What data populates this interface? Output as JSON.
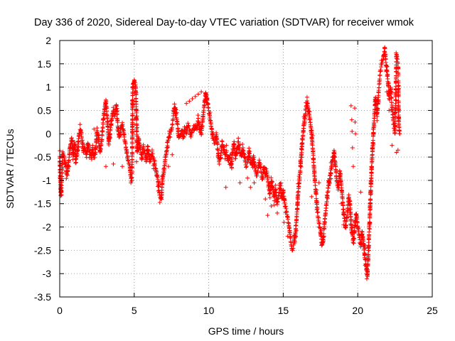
{
  "chart_data": {
    "type": "scatter",
    "title": "Day 336 of 2020, Sidereal Day-to-day VTEC variation (SDTVAR) for receiver wmok",
    "xlabel": "GPS time / hours",
    "ylabel": "SDTVAR / TECUs",
    "xlim": [
      0,
      25
    ],
    "ylim": [
      -3.5,
      2
    ],
    "xticks": [
      0,
      5,
      10,
      15,
      20,
      25
    ],
    "yticks": [
      -3.5,
      -3,
      -2.5,
      -2,
      -1.5,
      -1,
      -0.5,
      0,
      0.5,
      1,
      1.5,
      2
    ],
    "xtick_labels": [
      "0",
      "5",
      "10",
      "15",
      "20",
      "25"
    ],
    "ytick_labels": [
      "-3.5",
      "-3",
      "-2.5",
      "-2",
      "-1.5",
      "-1",
      "-0.5",
      "0",
      "0.5",
      "1",
      "1.5",
      "2"
    ],
    "grid": true,
    "marker": "plus",
    "color": "#ff0000",
    "series": [
      {
        "name": "SDTVAR",
        "trace": [
          [
            0.0,
            -0.5
          ],
          [
            0.05,
            -1.1
          ],
          [
            0.1,
            -1.3
          ],
          [
            0.15,
            -0.9
          ],
          [
            0.2,
            -0.4
          ],
          [
            0.3,
            -0.5
          ],
          [
            0.4,
            -0.7
          ],
          [
            0.5,
            -0.9
          ],
          [
            0.6,
            -0.6
          ],
          [
            0.7,
            -0.3
          ],
          [
            0.8,
            -0.1
          ],
          [
            0.9,
            -0.5
          ],
          [
            1.0,
            -0.2
          ],
          [
            1.1,
            -0.6
          ],
          [
            1.2,
            -0.3
          ],
          [
            1.3,
            -0.0
          ],
          [
            1.4,
            0.1
          ],
          [
            1.5,
            -0.1
          ],
          [
            1.6,
            -0.4
          ],
          [
            1.7,
            -0.3
          ],
          [
            1.8,
            -0.5
          ],
          [
            1.9,
            -0.2
          ],
          [
            2.0,
            -0.4
          ],
          [
            2.1,
            -0.5
          ],
          [
            2.2,
            -0.3
          ],
          [
            2.3,
            -0.5
          ],
          [
            2.4,
            -0.4
          ],
          [
            2.5,
            0.05
          ],
          [
            2.6,
            -0.1
          ],
          [
            2.7,
            -0.4
          ],
          [
            2.8,
            -0.2
          ],
          [
            2.9,
            0.2
          ],
          [
            3.0,
            0.5
          ],
          [
            3.1,
            0.7
          ],
          [
            3.2,
            0.3
          ],
          [
            3.3,
            -0.2
          ],
          [
            3.4,
            0.1
          ],
          [
            3.5,
            0.3
          ],
          [
            3.6,
            0.5
          ],
          [
            3.7,
            0.4
          ],
          [
            3.8,
            0.6
          ],
          [
            3.9,
            0.2
          ],
          [
            4.0,
            -0.1
          ],
          [
            4.1,
            0.1
          ],
          [
            4.2,
            0.2
          ],
          [
            4.3,
            0.0
          ],
          [
            4.4,
            -0.2
          ],
          [
            4.5,
            -0.4
          ],
          [
            4.6,
            -0.6
          ],
          [
            4.7,
            -0.7
          ],
          [
            4.75,
            -0.9
          ],
          [
            4.8,
            -1.0
          ],
          [
            4.85,
            -0.8
          ],
          [
            4.9,
            1.0
          ],
          [
            4.95,
            1.08
          ],
          [
            5.0,
            1.15
          ],
          [
            5.1,
            1.0
          ],
          [
            5.2,
            -0.4
          ],
          [
            5.3,
            -0.1
          ],
          [
            5.4,
            -0.3
          ],
          [
            5.5,
            -0.5
          ],
          [
            5.6,
            -0.3
          ],
          [
            5.7,
            -0.4
          ],
          [
            5.8,
            -0.6
          ],
          [
            5.9,
            -0.3
          ],
          [
            6.0,
            -0.5
          ],
          [
            6.1,
            -0.6
          ],
          [
            6.2,
            -0.4
          ],
          [
            6.6,
            -1.0
          ],
          [
            6.7,
            -1.3
          ],
          [
            6.8,
            -1.4
          ],
          [
            6.9,
            -1.0
          ],
          [
            7.0,
            -0.8
          ],
          [
            7.1,
            -0.5
          ],
          [
            7.2,
            -0.3
          ],
          [
            7.3,
            -0.1
          ],
          [
            7.4,
            0.0
          ],
          [
            7.5,
            0.1
          ],
          [
            7.6,
            0.3
          ],
          [
            7.7,
            0.6
          ],
          [
            7.8,
            0.4
          ],
          [
            7.9,
            0.2
          ],
          [
            8.0,
            -0.1
          ],
          [
            8.1,
            0.0
          ],
          [
            8.2,
            0.1
          ],
          [
            8.3,
            -0.1
          ],
          [
            8.4,
            0.1
          ],
          [
            8.5,
            0.0
          ],
          [
            8.6,
            0.2
          ],
          [
            8.7,
            0.1
          ],
          [
            8.8,
            -0.05
          ],
          [
            8.9,
            0.1
          ],
          [
            9.0,
            0.05
          ],
          [
            9.1,
            0.2
          ],
          [
            9.2,
            0.1
          ],
          [
            9.3,
            0.3
          ],
          [
            9.4,
            0.1
          ],
          [
            9.5,
            0.0
          ],
          [
            9.6,
            0.3
          ],
          [
            9.7,
            0.6
          ],
          [
            9.8,
            0.9
          ],
          [
            9.9,
            0.7
          ],
          [
            10.0,
            0.5
          ],
          [
            10.1,
            0.3
          ],
          [
            10.2,
            0.1
          ],
          [
            10.3,
            -0.1
          ],
          [
            10.4,
            -0.2
          ],
          [
            10.5,
            0.0
          ],
          [
            10.6,
            -0.3
          ],
          [
            10.7,
            -0.6
          ],
          [
            10.8,
            -0.5
          ],
          [
            10.9,
            -0.2
          ],
          [
            11.0,
            -0.3
          ],
          [
            11.1,
            -0.5
          ],
          [
            11.2,
            -0.4
          ],
          [
            11.3,
            -0.6
          ],
          [
            11.4,
            -0.5
          ],
          [
            11.5,
            -0.7
          ],
          [
            11.6,
            -0.4
          ],
          [
            11.7,
            -0.2
          ],
          [
            11.8,
            -0.5
          ],
          [
            11.9,
            -0.3
          ],
          [
            12.0,
            -0.2
          ],
          [
            12.1,
            -0.4
          ],
          [
            12.2,
            -0.5
          ],
          [
            12.3,
            -0.3
          ],
          [
            12.4,
            -0.5
          ],
          [
            12.5,
            -0.7
          ],
          [
            12.6,
            -0.6
          ],
          [
            12.7,
            -0.4
          ],
          [
            12.8,
            -0.6
          ],
          [
            12.9,
            -0.7
          ],
          [
            13.0,
            -0.5
          ],
          [
            13.1,
            -0.7
          ],
          [
            13.2,
            -0.9
          ],
          [
            13.3,
            -0.8
          ],
          [
            13.4,
            -0.6
          ],
          [
            13.5,
            -0.8
          ],
          [
            13.6,
            -1.0
          ],
          [
            13.7,
            -0.7
          ],
          [
            13.8,
            -0.9
          ],
          [
            13.9,
            -0.8
          ],
          [
            14.0,
            -1.1
          ],
          [
            14.1,
            -1.3
          ],
          [
            14.2,
            -1.0
          ],
          [
            14.3,
            -1.2
          ],
          [
            14.4,
            -1.4
          ],
          [
            14.5,
            -1.2
          ],
          [
            14.6,
            -1.5
          ],
          [
            14.7,
            -1.3
          ],
          [
            14.8,
            -1.1
          ],
          [
            14.9,
            -1.4
          ],
          [
            15.0,
            -1.2
          ],
          [
            15.1,
            -1.5
          ],
          [
            15.2,
            -1.6
          ],
          [
            15.3,
            -1.8
          ],
          [
            15.4,
            -2.0
          ],
          [
            15.5,
            -2.3
          ],
          [
            15.6,
            -2.5
          ],
          [
            15.7,
            -2.4
          ],
          [
            15.8,
            -2.2
          ],
          [
            15.9,
            -1.8
          ],
          [
            16.0,
            -1.3
          ],
          [
            16.1,
            -0.9
          ],
          [
            16.2,
            -0.5
          ],
          [
            16.3,
            -0.1
          ],
          [
            16.4,
            0.2
          ],
          [
            16.5,
            0.5
          ],
          [
            16.6,
            0.7
          ],
          [
            16.7,
            0.5
          ],
          [
            16.8,
            0.3
          ],
          [
            16.9,
            0.0
          ],
          [
            17.0,
            -0.4
          ],
          [
            17.1,
            -0.9
          ],
          [
            17.2,
            -1.3
          ],
          [
            17.3,
            -1.7
          ],
          [
            17.4,
            -1.9
          ],
          [
            17.5,
            -2.1
          ],
          [
            17.6,
            -2.4
          ],
          [
            17.7,
            -2.2
          ],
          [
            17.8,
            -1.8
          ],
          [
            17.9,
            -1.5
          ],
          [
            18.0,
            -1.2
          ],
          [
            18.1,
            -1.0
          ],
          [
            18.2,
            -0.8
          ],
          [
            18.3,
            -0.6
          ],
          [
            18.4,
            -0.4
          ],
          [
            18.5,
            -0.7
          ],
          [
            18.6,
            -1.0
          ],
          [
            18.7,
            -1.2
          ],
          [
            18.8,
            -0.8
          ],
          [
            18.9,
            -1.1
          ],
          [
            19.0,
            -1.5
          ],
          [
            19.1,
            -1.8
          ],
          [
            19.2,
            -2.0
          ],
          [
            19.3,
            -1.7
          ],
          [
            19.4,
            -1.3
          ],
          [
            19.5,
            -1.6
          ],
          [
            19.6,
            -2.1
          ],
          [
            19.7,
            -2.3
          ],
          [
            19.8,
            -2.0
          ],
          [
            19.9,
            -1.7
          ],
          [
            20.0,
            -2.0
          ],
          [
            20.1,
            -2.2
          ],
          [
            20.2,
            -2.4
          ],
          [
            20.3,
            -2.1
          ],
          [
            20.4,
            -2.4
          ],
          [
            20.5,
            -2.7
          ],
          [
            20.6,
            -2.9
          ],
          [
            20.65,
            -3.05
          ],
          [
            20.7,
            -2.6
          ],
          [
            20.8,
            -1.8
          ],
          [
            20.9,
            -1.0
          ],
          [
            21.0,
            -0.3
          ],
          [
            21.1,
            0.3
          ],
          [
            21.2,
            0.8
          ],
          [
            21.3,
            0.4
          ],
          [
            21.4,
            0.9
          ],
          [
            21.5,
            1.3
          ],
          [
            21.6,
            1.5
          ],
          [
            21.7,
            1.6
          ],
          [
            21.8,
            1.8
          ],
          [
            21.9,
            1.5
          ],
          [
            22.0,
            1.2
          ],
          [
            22.1,
            0.8
          ],
          [
            22.2,
            1.0
          ],
          [
            22.3,
            0.6
          ],
          [
            22.4,
            0.2
          ],
          [
            22.5,
            0.0
          ],
          [
            22.6,
            1.7
          ],
          [
            22.7,
            1.5
          ],
          [
            22.75,
            0.3
          ],
          [
            22.8,
            0.0
          ]
        ],
        "points": [
          [
            0.05,
            -1.25
          ],
          [
            1.05,
            -0.55
          ],
          [
            2.3,
            0.1
          ],
          [
            3.1,
            -0.7
          ],
          [
            3.6,
            -0.65
          ],
          [
            4.2,
            -0.7
          ],
          [
            5.15,
            -0.6
          ],
          [
            5.8,
            -0.55
          ],
          [
            6.3,
            -0.75
          ],
          [
            6.5,
            -0.9
          ],
          [
            7.3,
            -0.7
          ],
          [
            7.55,
            -0.45
          ],
          [
            8.5,
            0.65
          ],
          [
            8.7,
            0.7
          ],
          [
            8.9,
            0.75
          ],
          [
            9.1,
            0.8
          ],
          [
            9.3,
            0.85
          ],
          [
            9.5,
            0.9
          ],
          [
            11.15,
            -1.15
          ],
          [
            12.1,
            -1.05
          ],
          [
            12.6,
            -0.95
          ],
          [
            12.8,
            -1.15
          ],
          [
            13.05,
            -1.05
          ],
          [
            13.8,
            -1.4
          ],
          [
            13.95,
            -1.75
          ],
          [
            14.2,
            -1.55
          ],
          [
            14.6,
            -1.7
          ],
          [
            15.05,
            -1.9
          ],
          [
            15.3,
            -2.2
          ],
          [
            16.9,
            -1.35
          ],
          [
            17.4,
            -1.05
          ],
          [
            17.7,
            -2.3
          ],
          [
            18.9,
            -1.5
          ],
          [
            19.05,
            -1.95
          ],
          [
            19.55,
            0.6
          ],
          [
            19.6,
            0.3
          ],
          [
            19.62,
            0.05
          ],
          [
            19.65,
            -0.3
          ],
          [
            19.7,
            -0.7
          ],
          [
            19.8,
            0.55
          ],
          [
            19.82,
            0.25
          ],
          [
            19.85,
            0.0
          ],
          [
            20.2,
            -1.25
          ],
          [
            20.5,
            -2.45
          ],
          [
            20.6,
            -3.0
          ],
          [
            20.75,
            -2.5
          ],
          [
            20.85,
            -1.55
          ],
          [
            21.95,
            0.9
          ],
          [
            22.1,
            0.5
          ],
          [
            22.3,
            -0.25
          ],
          [
            22.6,
            -0.4
          ],
          [
            22.7,
            -0.35
          ]
        ]
      }
    ]
  }
}
